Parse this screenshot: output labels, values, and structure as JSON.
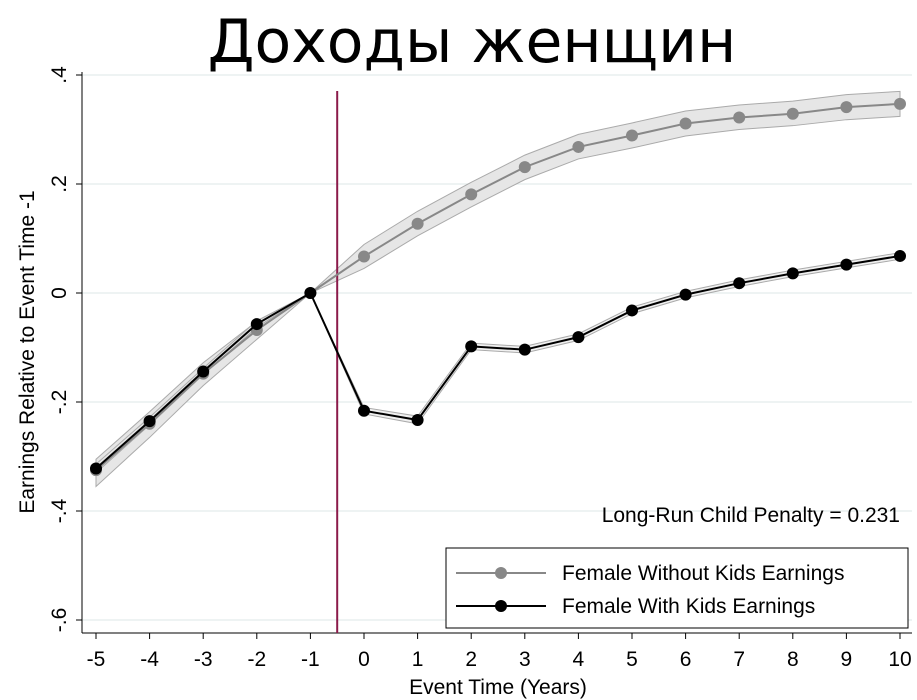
{
  "chart_data": {
    "type": "line",
    "title": "Доходы женщин",
    "xlabel": "Event Time (Years)",
    "ylabel": "Earnings Relative to Event Time -1",
    "x": [
      -5,
      -4,
      -3,
      -2,
      -1,
      0,
      1,
      2,
      3,
      4,
      5,
      6,
      7,
      8,
      9,
      10
    ],
    "xticks": [
      "-5",
      "-4",
      "-3",
      "-2",
      "-1",
      "0",
      "1",
      "2",
      "3",
      "4",
      "5",
      "6",
      "7",
      "8",
      "9",
      "10"
    ],
    "yticks": [
      {
        "value": 0.4,
        "label": ".4"
      },
      {
        "value": 0.2,
        "label": ".2"
      },
      {
        "value": 0,
        "label": "0"
      },
      {
        "value": -0.2,
        "label": "-.2"
      },
      {
        "value": -0.4,
        "label": "-.4"
      },
      {
        "value": -0.6,
        "label": "-.6"
      }
    ],
    "xlim": [
      -5,
      10
    ],
    "ylim": [
      -0.6,
      0.4
    ],
    "grid": true,
    "event_line_x": -0.5,
    "annotation": "Long-Run Child Penalty = 0.231",
    "legend_position": "bottom-right",
    "series": [
      {
        "name": "Female Without Kids Earnings",
        "color": "#888888",
        "values": [
          -0.325,
          -0.24,
          -0.148,
          -0.068,
          0,
          0.067,
          0.127,
          0.181,
          0.231,
          0.268,
          0.289,
          0.311,
          0.322,
          0.329,
          0.341,
          0.347
        ],
        "ci_lower": [
          -0.355,
          -0.265,
          -0.17,
          -0.085,
          0,
          0.045,
          0.105,
          0.158,
          0.208,
          0.246,
          0.266,
          0.288,
          0.3,
          0.307,
          0.318,
          0.324
        ],
        "ci_upper": [
          -0.305,
          -0.218,
          -0.128,
          -0.052,
          0,
          0.089,
          0.15,
          0.203,
          0.253,
          0.291,
          0.312,
          0.334,
          0.345,
          0.352,
          0.364,
          0.37
        ]
      },
      {
        "name": "Female With Kids Earnings",
        "color": "#000000",
        "values": [
          -0.322,
          -0.235,
          -0.144,
          -0.057,
          0,
          -0.216,
          -0.233,
          -0.098,
          -0.104,
          -0.081,
          -0.032,
          -0.003,
          0.018,
          0.036,
          0.052,
          0.068
        ],
        "ci_lower": [
          -0.33,
          -0.242,
          -0.15,
          -0.063,
          0,
          -0.222,
          -0.24,
          -0.104,
          -0.11,
          -0.087,
          -0.038,
          -0.009,
          0.012,
          0.03,
          0.046,
          0.062
        ],
        "ci_upper": [
          -0.314,
          -0.228,
          -0.138,
          -0.051,
          0,
          -0.21,
          -0.226,
          -0.092,
          -0.098,
          -0.075,
          -0.026,
          0.003,
          0.024,
          0.042,
          0.058,
          0.074
        ]
      }
    ]
  }
}
